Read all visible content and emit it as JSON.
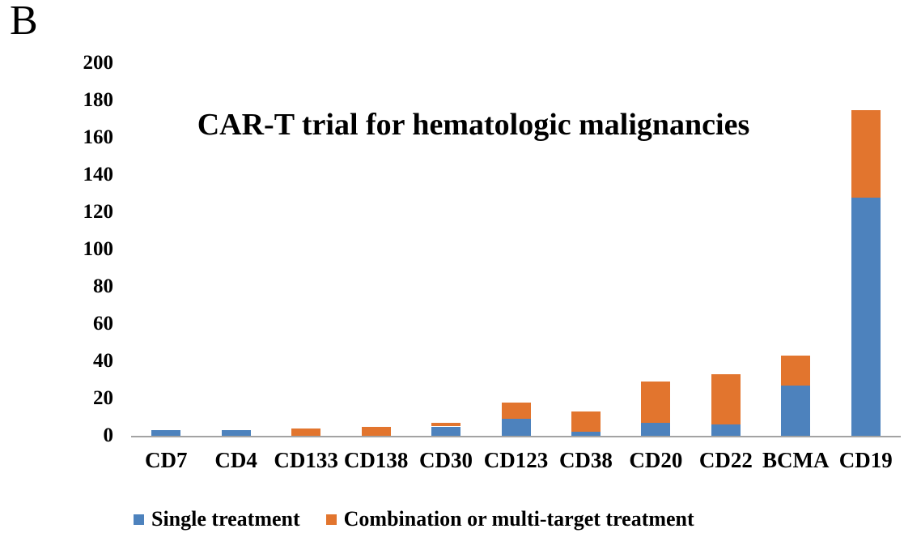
{
  "panel_label": "B",
  "chart_data": {
    "type": "bar",
    "stacked": true,
    "title": "CAR-T trial for hematologic malignancies",
    "categories": [
      "CD7",
      "CD4",
      "CD133",
      "CD138",
      "CD30",
      "CD123",
      "CD38",
      "CD20",
      "CD22",
      "BCMA",
      "CD19"
    ],
    "series": [
      {
        "name": "Single treatment",
        "color": "#4D82BD",
        "values": [
          3,
          3,
          0,
          0,
          5,
          9,
          2,
          7,
          6,
          27,
          128
        ]
      },
      {
        "name": "Combination or multi-target treatment",
        "color": "#E2752E",
        "values": [
          0,
          0,
          4,
          5,
          2,
          9,
          11,
          22,
          27,
          16,
          47
        ]
      }
    ],
    "totals": [
      3,
      3,
      4,
      5,
      7,
      18,
      13,
      29,
      33,
      43,
      175
    ],
    "xlabel": "",
    "ylabel": "",
    "ylim": [
      0,
      200
    ],
    "yticks": [
      0,
      20,
      40,
      60,
      80,
      100,
      120,
      140,
      160,
      180,
      200
    ],
    "grid": false,
    "legend_position": "bottom",
    "axis_line_color": "#A3A3A3",
    "text_color": "#000000",
    "background": "#FFFFFF"
  },
  "legend": {
    "items": [
      {
        "label": "Single treatment",
        "color": "#4D82BD"
      },
      {
        "label": "Combination or multi-target treatment",
        "color": "#E2752E"
      }
    ]
  }
}
